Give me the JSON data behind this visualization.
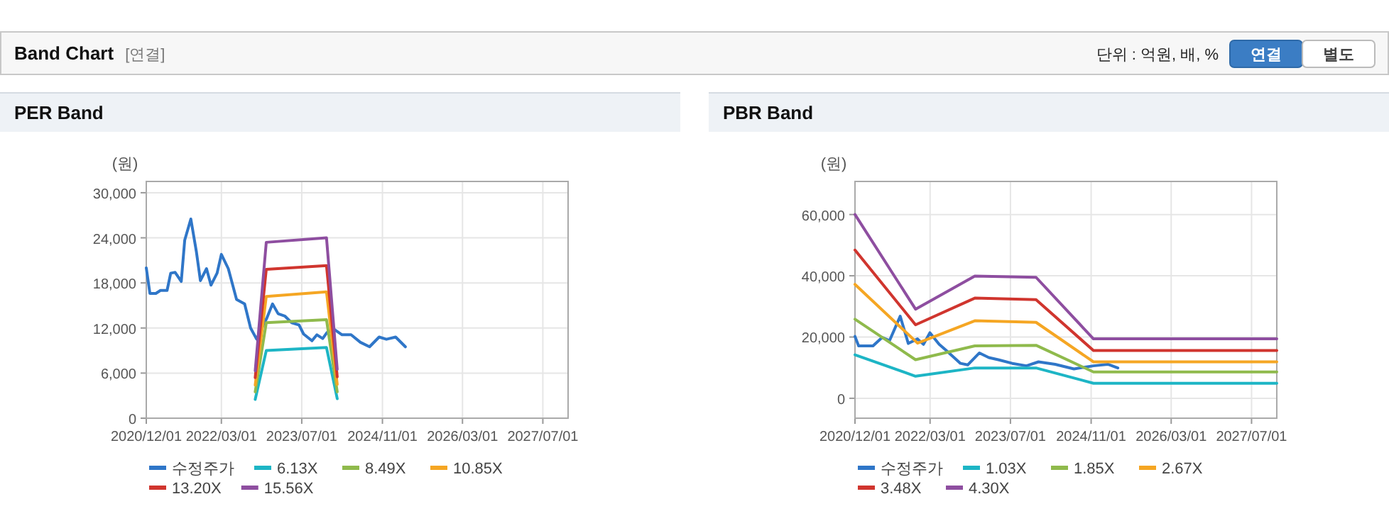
{
  "chart_data": [
    {
      "type": "other",
      "title": "Band Chart",
      "annotations": [
        "[연결]",
        "단위 : 억원, 배, %",
        "연결",
        "별도"
      ]
    },
    {
      "type": "line",
      "title": "PER Band",
      "ylabel": "(원)",
      "grid": true,
      "legend": "bottom",
      "line_style": "solid",
      "marker": "none",
      "xlim": [
        "2020-12-01",
        "2027-12-01"
      ],
      "xticks": [
        {
          "value": "2020-12-01",
          "label": "2020/12/01"
        },
        {
          "value": "2022-03-01",
          "label": "2022/03/01"
        },
        {
          "value": "2023-07-01",
          "label": "2023/07/01"
        },
        {
          "value": "2024-11-01",
          "label": "2024/11/01"
        },
        {
          "value": "2026-03-01",
          "label": "2026/03/01"
        },
        {
          "value": "2027-07-01",
          "label": "2027/07/01"
        }
      ],
      "ylim": [
        0,
        31500
      ],
      "yticks": [
        0,
        {
          "value": 6000,
          "label": "6,000"
        },
        {
          "value": 12000,
          "label": "12,000"
        },
        {
          "value": 18000,
          "label": "18,000"
        },
        {
          "value": 24000,
          "label": "24,000"
        },
        {
          "value": 30000,
          "label": "30,000"
        }
      ],
      "series": [
        {
          "name": "수정주가",
          "color": "#2f76c8",
          "x": [
            "2020-12-01",
            "2020-12-23",
            "2021-01-28",
            "2021-02-25",
            "2021-04-06",
            "2021-04-28",
            "2021-05-25",
            "2021-07-01",
            "2021-07-22",
            "2021-08-28",
            "2021-10-01",
            "2021-10-25",
            "2021-12-01",
            "2021-12-28",
            "2022-02-03",
            "2022-03-01",
            "2022-04-12",
            "2022-06-01",
            "2022-07-20",
            "2022-08-25",
            "2022-10-01",
            "2022-11-01",
            "2022-12-01",
            "2023-01-05",
            "2023-02-08",
            "2023-03-20",
            "2023-05-01",
            "2023-06-15",
            "2023-07-12",
            "2023-09-01",
            "2023-10-01",
            "2023-11-05",
            "2023-12-01",
            "2024-01-15",
            "2024-03-01",
            "2024-04-25",
            "2024-06-20",
            "2024-08-15",
            "2024-10-12",
            "2024-11-25",
            "2025-01-20",
            "2025-03-20"
          ],
          "values": [
            20000,
            16600,
            16600,
            17000,
            17000,
            19300,
            19400,
            18200,
            23700,
            26500,
            22100,
            18300,
            19900,
            17700,
            19300,
            21800,
            19900,
            15800,
            15200,
            12000,
            10500,
            12000,
            13300,
            15200,
            13900,
            13600,
            12700,
            12400,
            11200,
            10300,
            11100,
            10600,
            11400,
            11800,
            11100,
            11100,
            10100,
            9500,
            10800,
            10500,
            10800,
            9500
          ]
        },
        {
          "name": "6.13X",
          "color": "#1db5c5",
          "x": [
            "2022-09-22",
            "2022-11-28",
            "2023-11-28",
            "2024-02-01"
          ],
          "values": [
            2500,
            9000,
            9400,
            2600
          ]
        },
        {
          "name": "8.49X",
          "color": "#8fba4c",
          "x": [
            "2022-09-22",
            "2022-11-28",
            "2023-11-28",
            "2024-02-01"
          ],
          "values": [
            3500,
            12700,
            13100,
            3500
          ]
        },
        {
          "name": "10.85X",
          "color": "#f5a623",
          "x": [
            "2022-09-22",
            "2022-11-28",
            "2023-11-28",
            "2024-02-01"
          ],
          "values": [
            4400,
            16200,
            16800,
            4500
          ]
        },
        {
          "name": "13.20X",
          "color": "#d0352e",
          "x": [
            "2022-09-22",
            "2022-11-28",
            "2023-11-28",
            "2024-02-01"
          ],
          "values": [
            5400,
            19800,
            20300,
            5500
          ]
        },
        {
          "name": "15.56X",
          "color": "#8e4ea0",
          "x": [
            "2022-09-22",
            "2022-11-28",
            "2023-11-28",
            "2024-02-01"
          ],
          "values": [
            6300,
            23400,
            24000,
            6500
          ]
        }
      ]
    },
    {
      "type": "line",
      "title": "PBR Band",
      "ylabel": "(원)",
      "grid": true,
      "legend": "bottom",
      "line_style": "solid",
      "marker": "none",
      "xlim": [
        "2020-12-01",
        "2027-12-01"
      ],
      "xticks": [
        {
          "value": "2020-12-01",
          "label": "2020/12/01"
        },
        {
          "value": "2022-03-01",
          "label": "2022/03/01"
        },
        {
          "value": "2023-07-01",
          "label": "2023/07/01"
        },
        {
          "value": "2024-11-01",
          "label": "2024/11/01"
        },
        {
          "value": "2026-03-01",
          "label": "2026/03/01"
        },
        {
          "value": "2027-07-01",
          "label": "2027/07/01"
        }
      ],
      "ylim": [
        -6500,
        70800
      ],
      "yticks": [
        0,
        {
          "value": 20000,
          "label": "20,000"
        },
        {
          "value": 40000,
          "label": "40,000"
        },
        {
          "value": 60000,
          "label": "60,000"
        }
      ],
      "series": [
        {
          "name": "수정주가",
          "color": "#2f76c8",
          "x": [
            "2020-12-01",
            "2020-12-23",
            "2021-03-20",
            "2021-05-15",
            "2021-06-28",
            "2021-09-01",
            "2021-10-20",
            "2021-12-15",
            "2022-01-20",
            "2022-02-28",
            "2022-04-25",
            "2022-06-05",
            "2022-09-01",
            "2022-10-15",
            "2022-12-25",
            "2023-02-20",
            "2023-04-18",
            "2023-07-12",
            "2023-10-06",
            "2023-12-18",
            "2024-03-28",
            "2024-07-20",
            "2024-11-15",
            "2025-02-10",
            "2025-04-12"
          ],
          "values": [
            20200,
            17100,
            17100,
            19900,
            18800,
            26800,
            17900,
            19400,
            17600,
            21400,
            17600,
            15700,
            11400,
            10900,
            14800,
            13300,
            12600,
            11400,
            10600,
            11900,
            11100,
            9600,
            10600,
            11100,
            9900
          ]
        },
        {
          "name": "1.03X",
          "color": "#1db5c5",
          "x": [
            "2020-12-01",
            "2021-12-03",
            "2022-11-27",
            "2023-12-03",
            "2024-11-15",
            "2027-12-01"
          ],
          "values": [
            14200,
            7200,
            9900,
            9900,
            4900,
            4900
          ]
        },
        {
          "name": "1.85X",
          "color": "#8fba4c",
          "x": [
            "2020-12-01",
            "2021-12-03",
            "2022-11-27",
            "2023-12-03",
            "2024-11-15",
            "2027-12-01"
          ],
          "values": [
            25800,
            12600,
            17100,
            17300,
            8600,
            8600
          ]
        },
        {
          "name": "2.67X",
          "color": "#f5a623",
          "x": [
            "2020-12-01",
            "2021-12-15",
            "2022-11-27",
            "2023-12-03",
            "2024-11-15",
            "2027-12-01"
          ],
          "values": [
            37200,
            18000,
            25300,
            24800,
            11900,
            11900
          ]
        },
        {
          "name": "3.48X",
          "color": "#d0352e",
          "x": [
            "2020-12-01",
            "2021-12-03",
            "2022-11-27",
            "2023-12-03",
            "2024-11-15",
            "2027-12-01"
          ],
          "values": [
            48400,
            24000,
            32700,
            32200,
            15600,
            15600
          ]
        },
        {
          "name": "4.30X",
          "color": "#8e4ea0",
          "x": [
            "2020-12-01",
            "2021-12-03",
            "2022-11-27",
            "2023-12-03",
            "2024-11-15",
            "2027-12-01"
          ],
          "values": [
            60000,
            29100,
            39900,
            39500,
            19400,
            19400
          ]
        }
      ]
    }
  ]
}
